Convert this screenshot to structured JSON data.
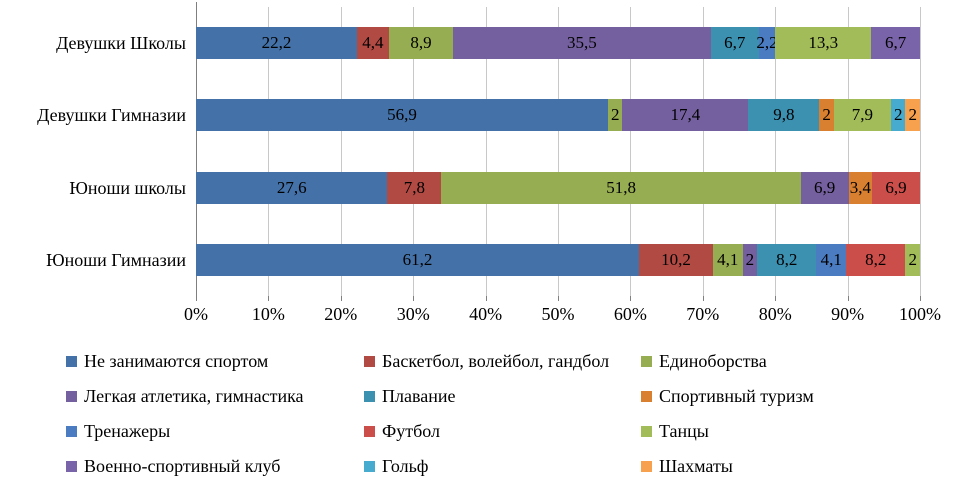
{
  "colors": {
    "background": "#FFFFFF",
    "gridline": "#C8C8C8",
    "axis": "#7F7F7F",
    "text": "#000000"
  },
  "chart_data": {
    "type": "bar",
    "variant": "horizontal-stacked-100",
    "title": "",
    "xlabel": "",
    "ylabel": "",
    "grid": true,
    "x_axis": {
      "range": [
        0,
        100
      ],
      "tick_labels": [
        "0%",
        "10%",
        "20%",
        "30%",
        "40%",
        "50%",
        "60%",
        "70%",
        "80%",
        "90%",
        "100%"
      ]
    },
    "categories": [
      "Девушки Школы",
      "Девушки Гимназии",
      "Юноши школы",
      "Юноши Гимназии"
    ],
    "series": [
      {
        "name": "Не занимаются спортом",
        "color": "#4472A8"
      },
      {
        "name": "Баскетбол, волейбол, гандбол",
        "color": "#B24A44"
      },
      {
        "name": "Единоборства",
        "color": "#97AD52"
      },
      {
        "name": "Легкая атлетика, гимнастика",
        "color": "#75609F"
      },
      {
        "name": "Плавание",
        "color": "#3C90B0"
      },
      {
        "name": "Спортивный туризм",
        "color": "#D8802F"
      },
      {
        "name": "Тренажеры",
        "color": "#4B7CC1"
      },
      {
        "name": "Футбол",
        "color": "#CC4E4B"
      },
      {
        "name": "Танцы",
        "color": "#A2BC5A"
      },
      {
        "name": "Военно-спортивный клуб",
        "color": "#7A64A9"
      },
      {
        "name": "Гольф",
        "color": "#46ABCE"
      },
      {
        "name": "Шахматы",
        "color": "#F7A14F"
      }
    ],
    "rows": [
      {
        "category": "Девушки Школы",
        "segments": [
          {
            "series": "Не занимаются спортом",
            "value": 22.2,
            "label": "22,2"
          },
          {
            "series": "Баскетбол, волейбол, гандбол",
            "value": 4.4,
            "label": "4,4"
          },
          {
            "series": "Единоборства",
            "value": 8.9,
            "label": "8,9"
          },
          {
            "series": "Легкая атлетика, гимнастика",
            "value": 35.5,
            "label": "35,5"
          },
          {
            "series": "Плавание",
            "value": 6.7,
            "label": "6,7"
          },
          {
            "series": "Тренажеры",
            "value": 2.2,
            "label": "2,2"
          },
          {
            "series": "Танцы",
            "value": 13.3,
            "label": "13,3"
          },
          {
            "series": "Военно-спортивный клуб",
            "value": 6.7,
            "label": "6,7"
          }
        ]
      },
      {
        "category": "Девушки Гимназии",
        "segments": [
          {
            "series": "Не занимаются спортом",
            "value": 56.9,
            "label": "56,9"
          },
          {
            "series": "Единоборства",
            "value": 2,
            "label": "2"
          },
          {
            "series": "Легкая атлетика, гимнастика",
            "value": 17.4,
            "label": "17,4"
          },
          {
            "series": "Плавание",
            "value": 9.8,
            "label": "9,8"
          },
          {
            "series": "Спортивный туризм",
            "value": 2,
            "label": "2"
          },
          {
            "series": "Танцы",
            "value": 7.9,
            "label": "7,9"
          },
          {
            "series": "Гольф",
            "value": 2,
            "label": "2"
          },
          {
            "series": "Шахматы",
            "value": 2,
            "label": "2"
          }
        ]
      },
      {
        "category": "Юноши школы",
        "segments": [
          {
            "series": "Не занимаются спортом",
            "value": 27.6,
            "label": "27,6"
          },
          {
            "series": "Баскетбол, волейбол, гандбол",
            "value": 7.8,
            "label": "7,8"
          },
          {
            "series": "Единоборства",
            "value": 51.8,
            "label": "51,8"
          },
          {
            "series": "Легкая атлетика, гимнастика",
            "value": 6.9,
            "label": "6,9"
          },
          {
            "series": "Спортивный туризм",
            "value": 3.4,
            "label": "3,4"
          },
          {
            "series": "Футбол",
            "value": 6.9,
            "label": "6,9"
          }
        ]
      },
      {
        "category": "Юноши Гимназии",
        "segments": [
          {
            "series": "Не занимаются спортом",
            "value": 61.2,
            "label": "61,2"
          },
          {
            "series": "Баскетбол, волейбол, гандбол",
            "value": 10.2,
            "label": "10,2"
          },
          {
            "series": "Единоборства",
            "value": 4.1,
            "label": "4,1"
          },
          {
            "series": "Легкая атлетика, гимнастика",
            "value": 2,
            "label": "2"
          },
          {
            "series": "Плавание",
            "value": 8.2,
            "label": "8,2"
          },
          {
            "series": "Тренажеры",
            "value": 4.1,
            "label": "4,1"
          },
          {
            "series": "Футбол",
            "value": 8.2,
            "label": "8,2"
          },
          {
            "series": "Танцы",
            "value": 2,
            "label": "2"
          }
        ]
      }
    ],
    "legend": {
      "position": "bottom",
      "columns": 3
    }
  }
}
